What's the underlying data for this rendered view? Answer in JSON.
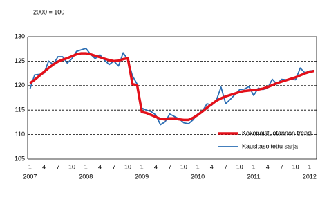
{
  "chart_data": {
    "type": "line",
    "annotation": "2000 = 100",
    "categories": [
      "1",
      null,
      null,
      "4",
      null,
      null,
      "7",
      null,
      null,
      "10",
      null,
      null,
      "1",
      null,
      null,
      "4",
      null,
      null,
      "7",
      null,
      null,
      "10",
      null,
      null,
      "1",
      null,
      null,
      "4",
      null,
      null,
      "7",
      null,
      null,
      "10",
      null,
      null,
      "1",
      null,
      null,
      "4",
      null,
      null,
      "7",
      null,
      null,
      "10",
      null,
      null,
      "1",
      null,
      null,
      "4",
      null,
      null,
      "7",
      null,
      null,
      "10",
      null,
      null,
      "1",
      null
    ],
    "category_groups": [
      "2007",
      null,
      null,
      null,
      null,
      null,
      null,
      null,
      null,
      null,
      null,
      null,
      "2008",
      null,
      null,
      null,
      null,
      null,
      null,
      null,
      null,
      null,
      null,
      null,
      "2009",
      null,
      null,
      null,
      null,
      null,
      null,
      null,
      null,
      null,
      null,
      null,
      "2010",
      null,
      null,
      null,
      null,
      null,
      null,
      null,
      null,
      null,
      null,
      null,
      "2011",
      null,
      null,
      null,
      null,
      null,
      null,
      null,
      null,
      null,
      null,
      null,
      "2012",
      null
    ],
    "series": [
      {
        "name": "Kokonaistuotannon trendi",
        "color": "#e3101a",
        "width": 3.5,
        "values": [
          120.5,
          121.2,
          122.0,
          122.8,
          123.6,
          124.3,
          124.9,
          125.3,
          125.6,
          126.0,
          126.4,
          126.6,
          126.6,
          126.4,
          126.1,
          125.8,
          125.5,
          125.2,
          125.0,
          125.1,
          125.4,
          125.6,
          120.3,
          120.1,
          114.6,
          114.4,
          114.0,
          113.6,
          113.2,
          113.1,
          113.3,
          113.3,
          113.1,
          113.0,
          113.0,
          113.4,
          114.0,
          114.7,
          115.5,
          116.2,
          116.9,
          117.4,
          117.8,
          118.1,
          118.4,
          118.7,
          118.9,
          119.0,
          119.1,
          119.2,
          119.4,
          119.7,
          120.1,
          120.5,
          120.8,
          121.1,
          121.4,
          121.7,
          122.1,
          122.5,
          122.8,
          123.0
        ]
      },
      {
        "name": "Kausitasoitettu sarja",
        "color": "#2a6db3",
        "width": 1.8,
        "values": [
          119.3,
          122.2,
          122.3,
          122.5,
          125.0,
          124.3,
          125.9,
          125.9,
          124.6,
          125.5,
          127.0,
          127.3,
          127.6,
          126.4,
          125.5,
          126.3,
          125.2,
          124.3,
          125.0,
          124.0,
          126.7,
          125.3,
          122.0,
          120.3,
          115.4,
          115.0,
          114.7,
          114.0,
          112.0,
          112.6,
          114.2,
          113.7,
          113.2,
          112.4,
          112.2,
          113.0,
          114.2,
          114.8,
          116.3,
          116.0,
          117.0,
          119.7,
          116.3,
          117.2,
          118.2,
          119.2,
          119.3,
          119.8,
          118.0,
          119.5,
          119.2,
          119.5,
          121.3,
          120.3,
          121.3,
          121.2,
          121.3,
          121.2,
          123.6,
          122.6,
          123.0,
          123.1
        ]
      }
    ],
    "ylim": [
      105,
      130
    ],
    "yticks": [
      105,
      110,
      115,
      120,
      125,
      130
    ],
    "grid": true,
    "legend": "lower right"
  }
}
